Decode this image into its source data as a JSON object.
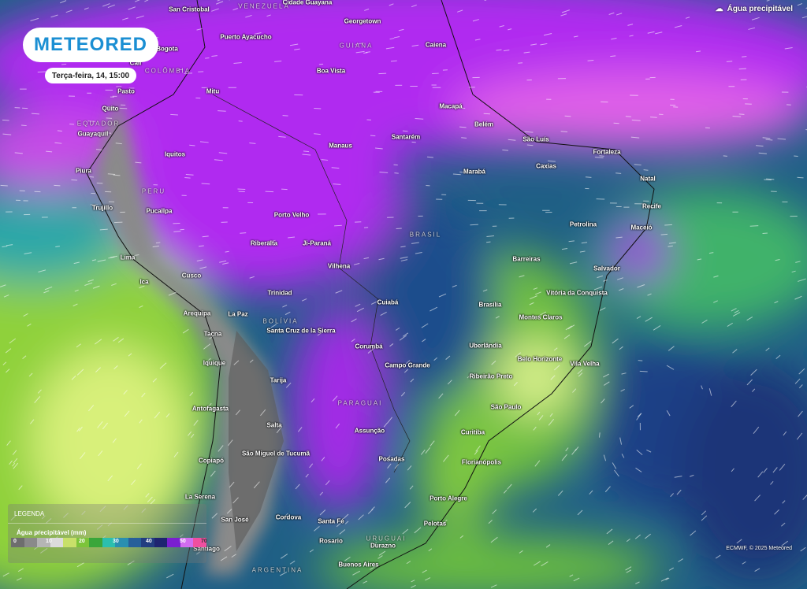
{
  "brand": {
    "logo": "METEORED",
    "datetime": "Terça-feira, 14, 15:00"
  },
  "layer": {
    "label": "Água precipitável",
    "icon": "cloud-upload-icon"
  },
  "legend": {
    "title": "LEGENDA",
    "subtitle": "Água precipitável (mm)",
    "ticks": [
      "0",
      "10",
      "20",
      "30",
      "40",
      "50",
      "70"
    ],
    "colors": [
      "#6e6e6e",
      "#8a8a8a",
      "#b5b5b5",
      "#dcdcdc",
      "#c8e06a",
      "#7cc43a",
      "#3aa63a",
      "#2bbfae",
      "#2a8fb0",
      "#275f9a",
      "#223d80",
      "#1e2470",
      "#7a1fd0",
      "#d26cf0",
      "#f04fa0"
    ]
  },
  "credit": "ECMWF, © 2025 Meteored",
  "countries": [
    [
      "VENEZUELA",
      335,
      8
    ],
    [
      "GUIANA",
      452,
      58
    ],
    [
      "COLÔMBIA",
      213,
      90
    ],
    [
      "EQUADOR",
      125,
      157
    ],
    [
      "PERU",
      195,
      243
    ],
    [
      "BRASIL",
      540,
      298
    ],
    [
      "BOLÍVIA",
      356,
      408
    ],
    [
      "PARAGUAI",
      457,
      512
    ],
    [
      "URUGUAI",
      490,
      684
    ],
    [
      "ARGENTINA",
      352,
      724
    ]
  ],
  "cities": [
    "San Cristobal",
    "Cidade Guayana",
    "Georgetown",
    "Puerto Ayacucho",
    "Caiena",
    "Boa Vista",
    "Bogota",
    "Cali",
    "Pasto",
    "Mitu",
    "Quito",
    "Guayaquil",
    "Macapá",
    "Belém",
    "Santarém",
    "Manaus",
    "São Luís",
    "Fortaleza",
    "Iquitos",
    "Caxias",
    "Marabá",
    "Piura",
    "Natal",
    "Recife",
    "Trujillo",
    "Pucallpa",
    "Porto Velho",
    "Petrolina",
    "Maceió",
    "Riberalta",
    "Ji-Paraná",
    "Lima",
    "Barreiras",
    "Vilhena",
    "Salvador",
    "Ica",
    "Cusco",
    "Trinidad",
    "Cuiabá",
    "Vitória da Conquista",
    "Brasília",
    "Arequipa",
    "La Paz",
    "Montes Claros",
    "Tacna",
    "Santa Cruz de la Sierra",
    "Uberlândia",
    "Corumbá",
    "Belo Horizonte",
    "Campo Grande",
    "Vila Velha",
    "Iquique",
    "Ribeirão Preto",
    "Tarija",
    "Antofagasta",
    "São Paulo",
    "Salta",
    "Assunção",
    "Curitiba",
    "São Miguel de Tucumã",
    "Posadas",
    "Florianópolis",
    "Copiapó",
    "La Serena",
    "Porto Alegre",
    "Cordova",
    "San José",
    "Santa Fé",
    "Pelotas",
    "Rosario",
    "Durazno",
    "Santiago",
    "Buenos Aires"
  ]
}
